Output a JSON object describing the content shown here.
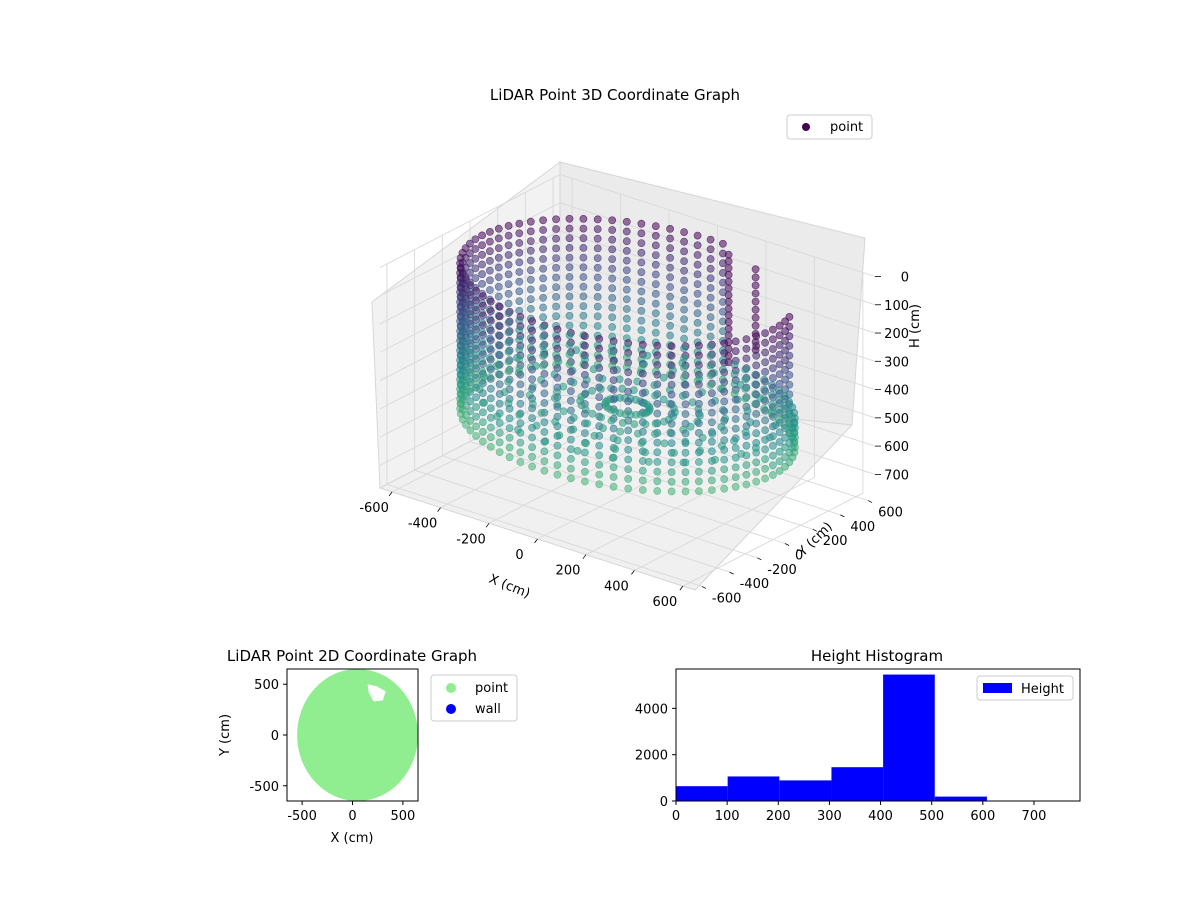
{
  "chart_data": [
    {
      "type": "scatter",
      "title": "LiDAR Point 3D Coordinate Graph",
      "xlabel": "X (cm)",
      "ylabel": "Y (cm)",
      "zlabel": "H (cm)",
      "xlim": [
        -650,
        650
      ],
      "ylim": [
        -650,
        650
      ],
      "zlim": [
        0,
        780
      ],
      "z_inverted": true,
      "xticks": [
        -600,
        -400,
        -200,
        0,
        200,
        400,
        600
      ],
      "yticks": [
        -600,
        -400,
        -200,
        0,
        200,
        400,
        600
      ],
      "zticks": [
        0,
        100,
        200,
        300,
        400,
        500,
        600,
        700
      ],
      "colormap": "viridis",
      "legend": [
        "point"
      ],
      "legend_placement": "top-right",
      "legend_marker_color": "#440154",
      "description_of_data": "cylindrical wall of points, radius ~600 cm, height 0-540 cm, with cutout and scattered interior points near +X/+Y"
    },
    {
      "type": "scatter",
      "title": "LiDAR Point 2D Coordinate Graph",
      "xlabel": "X (cm)",
      "ylabel": "Y (cm)",
      "xlim": [
        -650,
        650
      ],
      "ylim": [
        -650,
        650
      ],
      "xticks": [
        -500,
        0,
        500
      ],
      "yticks": [
        -500,
        0,
        500
      ],
      "series": [
        {
          "name": "point",
          "color": "#90ee90"
        },
        {
          "name": "wall",
          "color": "#0000ff"
        }
      ],
      "legend_placement": "outside-right"
    },
    {
      "type": "bar",
      "title": "Height Histogram",
      "xlabel": "",
      "ylabel": "",
      "bin_edges": [
        0,
        101,
        202,
        304,
        405,
        506,
        608,
        709,
        790
      ],
      "values": [
        640,
        1060,
        890,
        1460,
        5460,
        190,
        0,
        0
      ],
      "xlim": [
        0,
        790
      ],
      "ylim": [
        0,
        5700
      ],
      "xticks": [
        0,
        100,
        200,
        300,
        400,
        500,
        600,
        700
      ],
      "yticks": [
        0,
        2000,
        4000
      ],
      "series": [
        {
          "name": "Height",
          "color": "#0000ff"
        }
      ],
      "legend_placement": "top-right"
    }
  ]
}
